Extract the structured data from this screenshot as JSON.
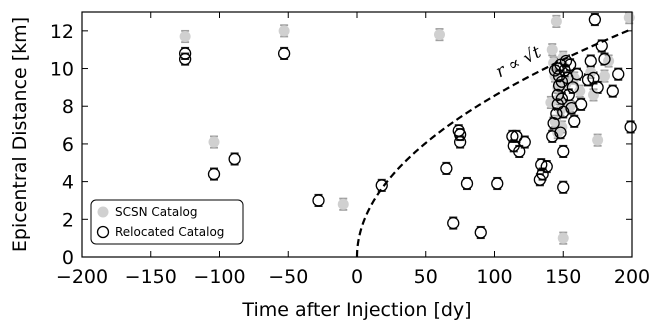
{
  "chart_data": {
    "type": "scatter",
    "title": "",
    "xlabel": "Time after Injection [dy]",
    "ylabel": "Epicentral Distance [km]",
    "xlim": [
      -200,
      200
    ],
    "ylim": [
      0,
      13
    ],
    "xticks": [
      -200,
      -150,
      -100,
      -50,
      0,
      50,
      100,
      150,
      200
    ],
    "xtick_labels": [
      "−200",
      "−150",
      "−100",
      "−50",
      "0",
      "50",
      "100",
      "150",
      "200"
    ],
    "yticks": [
      0,
      2,
      4,
      6,
      8,
      10,
      12
    ],
    "ytick_labels": [
      "0",
      "2",
      "4",
      "6",
      "8",
      "10",
      "12"
    ],
    "grid": false,
    "legend": {
      "placement": "bottom-left"
    },
    "colors": {
      "scsn": "#d0d0d0",
      "relocated": "#000000",
      "error_bar_scsn": "#a0a0a0",
      "error_bar_relocated": "#222222"
    },
    "series": [
      {
        "name": "SCSN Catalog",
        "marker": "filled-circle",
        "points": [
          [
            -125,
            11.7
          ],
          [
            -104,
            6.1
          ],
          [
            -53,
            12.0
          ],
          [
            -10,
            2.8
          ],
          [
            60,
            11.8
          ],
          [
            145,
            12.5
          ],
          [
            150,
            1.0
          ],
          [
            142,
            11.0
          ],
          [
            143,
            10.3
          ],
          [
            144,
            9.6
          ],
          [
            146,
            9.0
          ],
          [
            147,
            8.4
          ],
          [
            148,
            7.8
          ],
          [
            144,
            7.2
          ],
          [
            146,
            6.6
          ],
          [
            150,
            10.6
          ],
          [
            152,
            9.2
          ],
          [
            155,
            8.0
          ],
          [
            158,
            9.5
          ],
          [
            162,
            8.8
          ],
          [
            170,
            9.8
          ],
          [
            172,
            8.6
          ],
          [
            175,
            6.2
          ],
          [
            180,
            9.6
          ],
          [
            183,
            10.4
          ],
          [
            198,
            12.7
          ],
          [
            149,
            6.9
          ],
          [
            141,
            8.2
          ]
        ]
      },
      {
        "name": "Relocated Catalog",
        "marker": "open-circle",
        "points": [
          [
            -125,
            10.8
          ],
          [
            -125,
            10.5
          ],
          [
            -104,
            4.4
          ],
          [
            -89,
            5.2
          ],
          [
            -53,
            10.8
          ],
          [
            -28,
            3.0
          ],
          [
            18,
            3.8
          ],
          [
            65,
            4.7
          ],
          [
            70,
            1.8
          ],
          [
            74,
            6.7
          ],
          [
            75,
            6.5
          ],
          [
            75,
            6.1
          ],
          [
            80,
            3.9
          ],
          [
            90,
            1.3
          ],
          [
            102,
            3.9
          ],
          [
            113,
            6.4
          ],
          [
            114,
            5.9
          ],
          [
            116,
            6.4
          ],
          [
            118,
            5.6
          ],
          [
            122,
            6.1
          ],
          [
            133,
            4.1
          ],
          [
            134,
            4.9
          ],
          [
            135,
            4.4
          ],
          [
            138,
            4.8
          ],
          [
            142,
            6.4
          ],
          [
            143,
            7.1
          ],
          [
            145,
            7.6
          ],
          [
            146,
            8.1
          ],
          [
            146,
            8.6
          ],
          [
            147,
            9.1
          ],
          [
            147,
            9.6
          ],
          [
            148,
            10.2
          ],
          [
            149,
            9.3
          ],
          [
            149,
            8.4
          ],
          [
            150,
            7.7
          ],
          [
            150,
            5.6
          ],
          [
            150,
            3.7
          ],
          [
            151,
            9.9
          ],
          [
            152,
            10.4
          ],
          [
            153,
            9.5
          ],
          [
            154,
            8.6
          ],
          [
            155,
            10.2
          ],
          [
            156,
            7.9
          ],
          [
            157,
            9.0
          ],
          [
            158,
            7.2
          ],
          [
            160,
            9.7
          ],
          [
            163,
            8.1
          ],
          [
            168,
            9.4
          ],
          [
            170,
            10.4
          ],
          [
            172,
            9.5
          ],
          [
            173,
            12.6
          ],
          [
            175,
            9.0
          ],
          [
            178,
            11.2
          ],
          [
            180,
            10.5
          ],
          [
            186,
            8.8
          ],
          [
            190,
            9.7
          ],
          [
            199,
            6.9
          ],
          [
            144,
            9.9
          ],
          [
            146,
            10.0
          ],
          [
            148,
            6.6
          ]
        ]
      }
    ],
    "fit_curve": {
      "label": "r ∝ √t",
      "t0": 0,
      "r_at_200": 12.1,
      "x_end": 200
    },
    "error_bar_half_height": 0.3
  }
}
